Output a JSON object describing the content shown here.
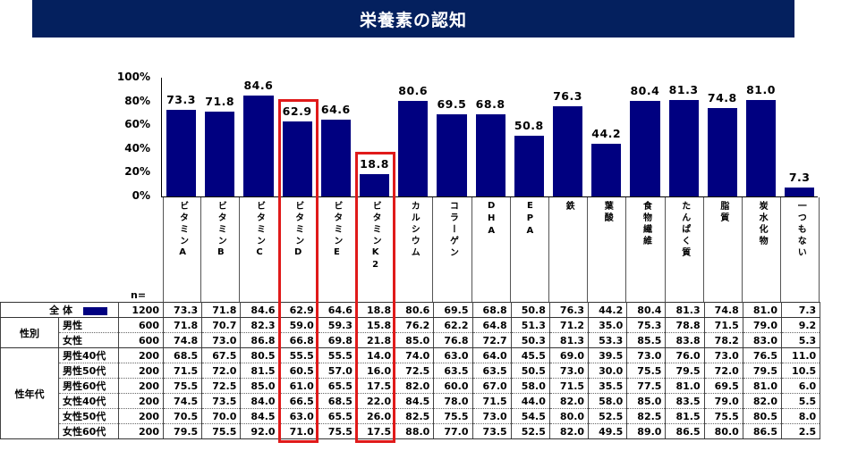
{
  "header": {
    "title": "栄養素の認知"
  },
  "chart_data": {
    "type": "bar",
    "title": "栄養素の認知",
    "xlabel": "",
    "ylabel": "",
    "ylim": [
      0,
      100
    ],
    "yticks": [
      "0%",
      "20%",
      "40%",
      "60%",
      "80%",
      "100%"
    ],
    "grid": false,
    "legend": {
      "entries": [
        "全体"
      ],
      "position": "table-row"
    },
    "categories": [
      "ビタミンA",
      "ビタミンB",
      "ビタミンC",
      "ビタミンD",
      "ビタミンE",
      "ビタミンK2",
      "カルシウム",
      "コラーゲン",
      "DHA",
      "EPA",
      "鉄",
      "葉酸",
      "食物繊維",
      "たんぱく質",
      "脂質",
      "炭水化物",
      "一つもない"
    ],
    "values": [
      73.3,
      71.8,
      84.6,
      62.9,
      64.6,
      18.8,
      80.6,
      69.5,
      68.8,
      50.8,
      76.3,
      44.2,
      80.4,
      81.3,
      74.8,
      81.0,
      7.3
    ],
    "highlighted": [
      "ビタミンD",
      "ビタミンK2"
    ],
    "series": [
      {
        "name": "全体",
        "n": 1200,
        "values": [
          73.3,
          71.8,
          84.6,
          62.9,
          64.6,
          18.8,
          80.6,
          69.5,
          68.8,
          50.8,
          76.3,
          44.2,
          80.4,
          81.3,
          74.8,
          81.0,
          7.3
        ]
      },
      {
        "name": "男性",
        "n": 600,
        "values": [
          71.8,
          70.7,
          82.3,
          59.0,
          59.3,
          15.8,
          76.2,
          62.2,
          64.8,
          51.3,
          71.2,
          35.0,
          75.3,
          78.8,
          71.5,
          79.0,
          9.2
        ]
      },
      {
        "name": "女性",
        "n": 600,
        "values": [
          74.8,
          73.0,
          86.8,
          66.8,
          69.8,
          21.8,
          85.0,
          76.8,
          72.7,
          50.3,
          81.3,
          53.3,
          85.5,
          83.8,
          78.2,
          83.0,
          5.3
        ]
      },
      {
        "name": "男性40代",
        "n": 200,
        "values": [
          68.5,
          67.5,
          80.5,
          55.5,
          55.5,
          14.0,
          74.0,
          63.0,
          64.0,
          45.5,
          69.0,
          39.5,
          73.0,
          76.0,
          73.0,
          76.5,
          11.0
        ]
      },
      {
        "name": "男性50代",
        "n": 200,
        "values": [
          71.5,
          72.0,
          81.5,
          60.5,
          57.0,
          16.0,
          72.5,
          63.5,
          63.5,
          50.5,
          73.0,
          30.0,
          75.5,
          79.5,
          72.0,
          79.5,
          10.5
        ]
      },
      {
        "name": "男性60代",
        "n": 200,
        "values": [
          75.5,
          72.5,
          85.0,
          61.0,
          65.5,
          17.5,
          82.0,
          60.0,
          67.0,
          58.0,
          71.5,
          35.5,
          77.5,
          81.0,
          69.5,
          81.0,
          6.0
        ]
      },
      {
        "name": "女性40代",
        "n": 200,
        "values": [
          74.5,
          73.5,
          84.0,
          66.5,
          68.5,
          22.0,
          84.5,
          78.0,
          71.5,
          44.0,
          82.0,
          58.0,
          85.0,
          83.5,
          79.0,
          82.0,
          5.5
        ]
      },
      {
        "name": "女性50代",
        "n": 200,
        "values": [
          70.5,
          70.0,
          84.5,
          63.0,
          65.5,
          26.0,
          82.5,
          75.5,
          73.0,
          54.5,
          80.0,
          52.5,
          82.5,
          81.5,
          75.5,
          80.5,
          8.0
        ]
      },
      {
        "name": "女性60代",
        "n": 200,
        "values": [
          79.5,
          75.5,
          92.0,
          71.0,
          75.5,
          17.5,
          88.0,
          77.0,
          73.5,
          52.5,
          82.0,
          49.5,
          89.0,
          86.5,
          80.0,
          86.5,
          2.5
        ]
      }
    ]
  },
  "table": {
    "n_header": "n=",
    "total_label": "全 体",
    "groups": [
      {
        "label": "性別",
        "rows": [
          "男性",
          "女性"
        ]
      },
      {
        "label": "性年代",
        "rows": [
          "男性40代",
          "男性50代",
          "男性60代",
          "女性40代",
          "女性50代",
          "女性60代"
        ]
      }
    ]
  },
  "colors": {
    "bar": "#000080",
    "title_bg": "#04205e",
    "highlight": "#e01a1a"
  }
}
